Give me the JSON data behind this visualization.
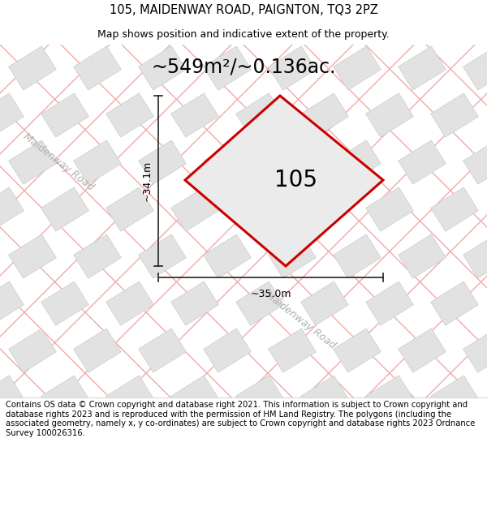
{
  "title": "105, MAIDENWAY ROAD, PAIGNTON, TQ3 2PZ",
  "subtitle": "Map shows position and indicative extent of the property.",
  "area_text": "~549m²/~0.136ac.",
  "house_number": "105",
  "dim_width": "~35.0m",
  "dim_height": "~34.1m",
  "road_label_top": "Maidenway Road",
  "road_label_bottom": "Maidenway Road",
  "footer": "Contains OS data © Crown copyright and database right 2021. This information is subject to Crown copyright and database rights 2023 and is reproduced with the permission of HM Land Registry. The polygons (including the associated geometry, namely x, y co-ordinates) are subject to Crown copyright and database rights 2023 Ordnance Survey 100026316.",
  "map_bg": "#f0f0f0",
  "plot_color": "#cc0000",
  "tile_color_light": "#e2e2e2",
  "tile_color_stroke": "#cccccc",
  "road_stripe_color": "#f0aaaa",
  "dim_line_color": "#222222",
  "road_text_color": "#b0b0b0",
  "title_fontsize": 10.5,
  "subtitle_fontsize": 9,
  "area_fontsize": 17,
  "house_fontsize": 20,
  "footer_fontsize": 7.2,
  "figsize": [
    6.0,
    6.25
  ],
  "dpi": 100
}
